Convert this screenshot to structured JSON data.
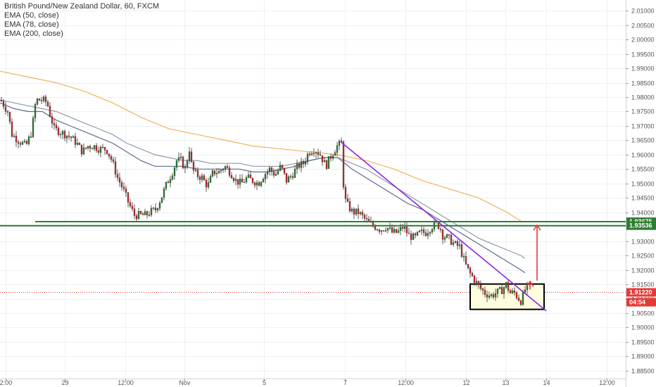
{
  "chart_data": {
    "type": "candlestick",
    "title": "British Pound/New Zealand Dollar, 60, FXCM",
    "indicators": [
      "EMA (50, close)",
      "EMA (78, close)",
      "EMA (200, close)"
    ],
    "x_tick_labels": [
      "2:00",
      "29",
      "12:00",
      "Nov",
      "5",
      "7",
      "12:00",
      "12",
      "13",
      "14",
      "12:00"
    ],
    "y_tick_labels": [
      "2.01000",
      "2.00500",
      "2.00000",
      "1.99500",
      "1.99000",
      "1.98500",
      "1.98000",
      "1.97500",
      "1.97000",
      "1.96500",
      "1.96000",
      "1.95500",
      "1.95000",
      "1.94500",
      "1.94000",
      "1.93500",
      "1.93000",
      "1.92500",
      "1.92000",
      "1.91500",
      "1.91000",
      "1.90500",
      "1.90000",
      "1.89500",
      "1.89000",
      "1.88500"
    ],
    "ylim": [
      1.8835,
      2.0125
    ],
    "grid": true,
    "price_levels": [
      {
        "value": 1.93675,
        "label": "1.93675",
        "color": "#2e7d32"
      },
      {
        "value": 1.93536,
        "label": "1.93536",
        "color": "#2e7d32"
      }
    ],
    "last_price": {
      "value": 1.9122,
      "label": "1.91220",
      "countdown": "04:54",
      "color": "#e53935"
    },
    "close_path": [
      [
        0,
        1.979
      ],
      [
        10,
        1.975
      ],
      [
        16,
        1.967
      ],
      [
        25,
        1.965
      ],
      [
        36,
        1.963
      ],
      [
        44,
        1.968
      ],
      [
        50,
        1.979
      ],
      [
        60,
        1.979
      ],
      [
        66,
        1.978
      ],
      [
        70,
        1.974
      ],
      [
        76,
        1.969
      ],
      [
        84,
        1.968
      ],
      [
        92,
        1.967
      ],
      [
        100,
        1.966
      ],
      [
        108,
        1.964
      ],
      [
        116,
        1.961
      ],
      [
        124,
        1.963
      ],
      [
        132,
        1.963
      ],
      [
        140,
        1.962
      ],
      [
        150,
        1.962
      ],
      [
        158,
        1.958
      ],
      [
        166,
        1.952
      ],
      [
        174,
        1.948
      ],
      [
        182,
        1.943
      ],
      [
        190,
        1.939
      ],
      [
        198,
        1.939
      ],
      [
        206,
        1.939
      ],
      [
        212,
        1.94
      ],
      [
        220,
        1.941
      ],
      [
        228,
        1.945
      ],
      [
        236,
        1.95
      ],
      [
        244,
        1.954
      ],
      [
        250,
        1.958
      ],
      [
        256,
        1.958
      ],
      [
        262,
        1.955
      ],
      [
        268,
        1.962
      ],
      [
        272,
        1.955
      ],
      [
        278,
        1.953
      ],
      [
        286,
        1.952
      ],
      [
        294,
        1.949
      ],
      [
        302,
        1.954
      ],
      [
        310,
        1.954
      ],
      [
        318,
        1.956
      ],
      [
        326,
        1.954
      ],
      [
        334,
        1.951
      ],
      [
        342,
        1.95
      ],
      [
        350,
        1.952
      ],
      [
        358,
        1.951
      ],
      [
        366,
        1.95
      ],
      [
        374,
        1.953
      ],
      [
        382,
        1.955
      ],
      [
        390,
        1.953
      ],
      [
        398,
        1.956
      ],
      [
        406,
        1.951
      ],
      [
        414,
        1.953
      ],
      [
        422,
        1.956
      ],
      [
        430,
        1.957
      ],
      [
        438,
        1.961
      ],
      [
        446,
        1.962
      ],
      [
        454,
        1.96
      ],
      [
        462,
        1.956
      ],
      [
        470,
        1.96
      ],
      [
        478,
        1.963
      ],
      [
        484,
        1.964
      ],
      [
        488,
        1.945
      ],
      [
        494,
        1.942
      ],
      [
        500,
        1.94
      ],
      [
        508,
        1.94
      ],
      [
        516,
        1.938
      ],
      [
        524,
        1.936
      ],
      [
        532,
        1.935
      ],
      [
        540,
        1.934
      ],
      [
        548,
        1.935
      ],
      [
        556,
        1.933
      ],
      [
        564,
        1.933
      ],
      [
        572,
        1.935
      ],
      [
        580,
        1.932
      ],
      [
        588,
        1.931
      ],
      [
        596,
        1.933
      ],
      [
        604,
        1.933
      ],
      [
        612,
        1.935
      ],
      [
        618,
        1.936
      ],
      [
        624,
        1.935
      ],
      [
        628,
        1.932
      ],
      [
        636,
        1.931
      ],
      [
        644,
        1.929
      ],
      [
        652,
        1.928
      ],
      [
        660,
        1.922
      ],
      [
        666,
        1.919
      ],
      [
        672,
        1.917
      ],
      [
        680,
        1.914
      ],
      [
        688,
        1.912
      ],
      [
        696,
        1.911
      ],
      [
        704,
        1.912
      ],
      [
        712,
        1.913
      ],
      [
        718,
        1.915
      ],
      [
        724,
        1.912
      ],
      [
        730,
        1.912
      ],
      [
        736,
        1.91
      ],
      [
        740,
        1.909
      ],
      [
        744,
        1.913
      ],
      [
        750,
        1.914
      ]
    ],
    "ema_50": [
      [
        0,
        1.978
      ],
      [
        20,
        1.976
      ],
      [
        40,
        1.975
      ],
      [
        60,
        1.975
      ],
      [
        80,
        1.972
      ],
      [
        100,
        1.97
      ],
      [
        120,
        1.968
      ],
      [
        140,
        1.966
      ],
      [
        160,
        1.964
      ],
      [
        180,
        1.961
      ],
      [
        200,
        1.958
      ],
      [
        220,
        1.956
      ],
      [
        240,
        1.956
      ],
      [
        260,
        1.956
      ],
      [
        280,
        1.955
      ],
      [
        300,
        1.955
      ],
      [
        320,
        1.955
      ],
      [
        340,
        1.955
      ],
      [
        360,
        1.954
      ],
      [
        380,
        1.954
      ],
      [
        400,
        1.955
      ],
      [
        420,
        1.956
      ],
      [
        440,
        1.958
      ],
      [
        460,
        1.959
      ],
      [
        480,
        1.959
      ],
      [
        500,
        1.955
      ],
      [
        520,
        1.952
      ],
      [
        540,
        1.949
      ],
      [
        560,
        1.946
      ],
      [
        580,
        1.943
      ],
      [
        600,
        1.941
      ],
      [
        620,
        1.938
      ],
      [
        640,
        1.935
      ],
      [
        660,
        1.932
      ],
      [
        680,
        1.929
      ],
      [
        700,
        1.926
      ],
      [
        720,
        1.923
      ],
      [
        740,
        1.92
      ],
      [
        746,
        1.919
      ]
    ],
    "ema_78": [
      [
        0,
        1.979
      ],
      [
        20,
        1.978
      ],
      [
        40,
        1.977
      ],
      [
        60,
        1.976
      ],
      [
        80,
        1.975
      ],
      [
        100,
        1.973
      ],
      [
        120,
        1.971
      ],
      [
        140,
        1.969
      ],
      [
        160,
        1.967
      ],
      [
        180,
        1.964
      ],
      [
        200,
        1.962
      ],
      [
        220,
        1.96
      ],
      [
        240,
        1.959
      ],
      [
        260,
        1.958
      ],
      [
        280,
        1.958
      ],
      [
        300,
        1.957
      ],
      [
        320,
        1.957
      ],
      [
        340,
        1.957
      ],
      [
        360,
        1.956
      ],
      [
        380,
        1.956
      ],
      [
        400,
        1.956
      ],
      [
        420,
        1.957
      ],
      [
        440,
        1.958
      ],
      [
        460,
        1.959
      ],
      [
        480,
        1.959
      ],
      [
        500,
        1.957
      ],
      [
        520,
        1.955
      ],
      [
        540,
        1.952
      ],
      [
        560,
        1.949
      ],
      [
        580,
        1.946
      ],
      [
        600,
        1.943
      ],
      [
        620,
        1.94
      ],
      [
        640,
        1.937
      ],
      [
        660,
        1.934
      ],
      [
        680,
        1.931
      ],
      [
        700,
        1.929
      ],
      [
        720,
        1.927
      ],
      [
        740,
        1.925
      ],
      [
        746,
        1.924
      ]
    ],
    "ema_200": [
      [
        0,
        1.989
      ],
      [
        40,
        1.987
      ],
      [
        80,
        1.985
      ],
      [
        120,
        1.982
      ],
      [
        160,
        1.978
      ],
      [
        200,
        1.973
      ],
      [
        240,
        1.969
      ],
      [
        280,
        1.967
      ],
      [
        320,
        1.965
      ],
      [
        360,
        1.963
      ],
      [
        400,
        1.962
      ],
      [
        440,
        1.961
      ],
      [
        480,
        1.96
      ],
      [
        520,
        1.958
      ],
      [
        560,
        1.955
      ],
      [
        600,
        1.951
      ],
      [
        640,
        1.948
      ],
      [
        680,
        1.945
      ],
      [
        720,
        1.94
      ],
      [
        740,
        1.937
      ]
    ],
    "ema_colors": {
      "ema_50": "#5c6b8c",
      "ema_78": "#8d9aa8",
      "ema_200": "#f0b35c"
    },
    "drawings": {
      "trendline": {
        "x1": 484,
        "y1": 1.9645,
        "x2": 776,
        "y2": 1.9058,
        "color": "#8a2be2"
      },
      "box": {
        "x1": 668,
        "y1": 1.9151,
        "x2": 773,
        "y2": 1.9063,
        "color": "#000000",
        "fill": "#fffde0"
      },
      "target_arrow": {
        "x": 763,
        "y_from": 1.9163,
        "y_to": 1.9355,
        "color": "#e53935"
      },
      "small_arrow": {
        "x": 753,
        "y_from": 1.9132,
        "y_to": 1.916,
        "color": "#e53935"
      },
      "support_line": {
        "x1": 50,
        "x2": 890,
        "y": 1.93675
      },
      "resistance_line": {
        "x1": 0,
        "x2": 890,
        "y": 1.93536
      }
    },
    "colors": {
      "up": "#2e7d32",
      "down": "#c62828",
      "grid": "#eef0f5"
    }
  }
}
